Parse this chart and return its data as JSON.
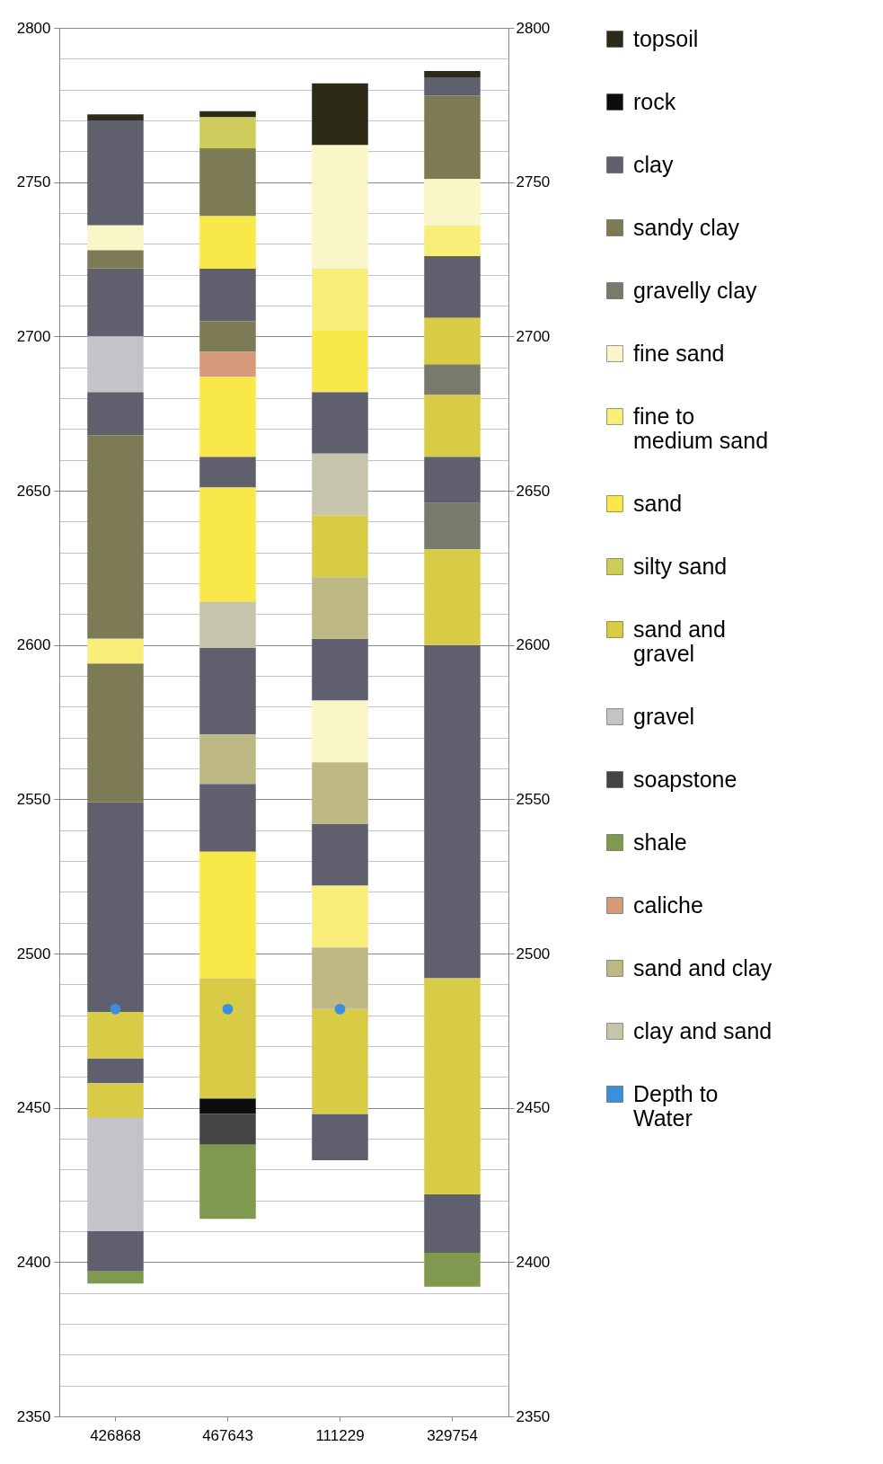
{
  "chart_data": {
    "type": "bar",
    "categories": [
      "426868",
      "467643",
      "111229",
      "329754"
    ],
    "ylim": [
      2350,
      2800
    ],
    "yticks": [
      2350,
      {
        "value": 2360,
        "label": null
      },
      {
        "value": 2370,
        "label": null
      },
      {
        "value": 2380,
        "label": null
      },
      {
        "value": 2390,
        "label": null
      },
      2400,
      {
        "value": 2410,
        "label": null
      },
      {
        "value": 2420,
        "label": null
      },
      {
        "value": 2430,
        "label": null
      },
      {
        "value": 2440,
        "label": null
      },
      2450,
      {
        "value": 2460,
        "label": null
      },
      {
        "value": 2470,
        "label": null
      },
      {
        "value": 2480,
        "label": null
      },
      {
        "value": 2490,
        "label": null
      },
      2500,
      {
        "value": 2510,
        "label": null
      },
      {
        "value": 2520,
        "label": null
      },
      {
        "value": 2530,
        "label": null
      },
      {
        "value": 2540,
        "label": null
      },
      2550,
      {
        "value": 2560,
        "label": null
      },
      {
        "value": 2570,
        "label": null
      },
      {
        "value": 2580,
        "label": null
      },
      {
        "value": 2590,
        "label": null
      },
      2600,
      {
        "value": 2610,
        "label": null
      },
      {
        "value": 2620,
        "label": null
      },
      {
        "value": 2630,
        "label": null
      },
      {
        "value": 2640,
        "label": null
      },
      2650,
      {
        "value": 2660,
        "label": null
      },
      {
        "value": 2670,
        "label": null
      },
      {
        "value": 2680,
        "label": null
      },
      {
        "value": 2690,
        "label": null
      },
      2700,
      {
        "value": 2710,
        "label": null
      },
      {
        "value": 2720,
        "label": null
      },
      {
        "value": 2730,
        "label": null
      },
      {
        "value": 2740,
        "label": null
      },
      2750,
      {
        "value": 2760,
        "label": null
      },
      {
        "value": 2770,
        "label": null
      },
      {
        "value": 2780,
        "label": null
      },
      {
        "value": 2790,
        "label": null
      },
      2800
    ],
    "y2lim": [
      2350,
      2800
    ],
    "y2ticks": [
      2350,
      2400,
      2450,
      2500,
      2550,
      2600,
      2650,
      2700,
      2750,
      2800
    ],
    "grid": "y",
    "legend": "right",
    "series": [
      {
        "name": "topsoil",
        "color": "#2e2a18",
        "x": [
          "426868",
          "467643",
          "111229",
          "329754"
        ],
        "base": [
          2770,
          2771,
          2762,
          2784
        ],
        "values": [
          2,
          2,
          20,
          2
        ]
      },
      {
        "name": "rock",
        "color": "#0d0d0d",
        "x": [
          "467643"
        ],
        "base": [
          2448
        ],
        "values": [
          5
        ]
      },
      {
        "name": "clay",
        "color": "#5f5f6e",
        "x": [
          "426868",
          "426868",
          "426868",
          "426868",
          "426868",
          "426868",
          "467643",
          "467643",
          "467643",
          "467643",
          "111229",
          "111229",
          "111229",
          "111229",
          "329754",
          "329754",
          "329754",
          "329754",
          "329754"
        ],
        "base": [
          2397,
          2458,
          2481,
          2668,
          2700,
          2736,
          2533,
          2571,
          2651,
          2705,
          2433,
          2522,
          2582,
          2662,
          2403,
          2492,
          2646,
          2706,
          2778
        ],
        "values": [
          13,
          8,
          68,
          14,
          22,
          34,
          22,
          28,
          10,
          17,
          15,
          20,
          20,
          20,
          19,
          108,
          15,
          20,
          6
        ]
      },
      {
        "name": "sandy clay",
        "color": "#7c7b55",
        "x": [
          "426868",
          "426868",
          "426868",
          "467643",
          "467643",
          "329754"
        ],
        "base": [
          2549,
          2602,
          2722,
          2695,
          2739,
          2751
        ],
        "values": [
          45,
          66,
          6,
          10,
          22,
          27
        ]
      },
      {
        "name": "gravelly clay",
        "color": "#7a7a6c",
        "x": [
          "329754",
          "329754"
        ],
        "base": [
          2631,
          2681
        ],
        "values": [
          15,
          10
        ]
      },
      {
        "name": "fine sand",
        "color": "#fbf6c8",
        "x": [
          "426868",
          "111229",
          "111229",
          "329754"
        ],
        "base": [
          2728,
          2562,
          2722,
          2736
        ],
        "values": [
          8,
          20,
          40,
          15
        ]
      },
      {
        "name": "fine to medium sand",
        "color": "#f9ee7a",
        "x": [
          "426868",
          "111229",
          "111229",
          "329754"
        ],
        "base": [
          2594,
          2502,
          2702,
          2726
        ],
        "values": [
          8,
          20,
          20,
          10
        ]
      },
      {
        "name": "sand",
        "color": "#f8e84a",
        "x": [
          "467643",
          "467643",
          "467643",
          "467643",
          "111229"
        ],
        "base": [
          2492,
          2614,
          2661,
          2722,
          2682
        ],
        "values": [
          41,
          37,
          26,
          17,
          20
        ]
      },
      {
        "name": "silty sand",
        "color": "#cdcc5c",
        "x": [
          "467643"
        ],
        "base": [
          2761
        ],
        "values": [
          10
        ]
      },
      {
        "name": "sand and gravel",
        "color": "#d8cb45",
        "x": [
          "426868",
          "426868",
          "467643",
          "111229",
          "111229",
          "329754",
          "329754",
          "329754",
          "329754"
        ],
        "base": [
          2447,
          2466,
          2453,
          2448,
          2622,
          2422,
          2600,
          2661,
          2691
        ],
        "values": [
          11,
          15,
          39,
          34,
          20,
          70,
          31,
          20,
          15
        ]
      },
      {
        "name": "gravel",
        "color": "#c4c4c8",
        "x": [
          "426868",
          "426868"
        ],
        "base": [
          2410,
          2682
        ],
        "values": [
          37,
          18
        ]
      },
      {
        "name": "soapstone",
        "color": "#444444",
        "x": [
          "467643"
        ],
        "base": [
          2438
        ],
        "values": [
          10
        ]
      },
      {
        "name": "shale",
        "color": "#7f9a4e",
        "x": [
          "426868",
          "467643",
          "329754"
        ],
        "base": [
          2393,
          2414,
          2392
        ],
        "values": [
          4,
          24,
          11
        ]
      },
      {
        "name": "caliche",
        "color": "#d49a7a",
        "x": [
          "467643"
        ],
        "base": [
          2687
        ],
        "values": [
          8
        ]
      },
      {
        "name": "sand and clay",
        "color": "#bdb884",
        "x": [
          "467643",
          "111229",
          "111229",
          "111229"
        ],
        "base": [
          2555,
          2482,
          2542,
          2602
        ],
        "values": [
          16,
          20,
          20,
          20
        ]
      },
      {
        "name": "clay and sand",
        "color": "#c6c4aa",
        "x": [
          "467643",
          "111229"
        ],
        "base": [
          2599,
          2642
        ],
        "values": [
          15,
          20
        ]
      },
      {
        "name": "Depth to Water",
        "color": "#3b8fdc",
        "type": "scatter",
        "x": [
          "426868",
          "467643",
          "111229"
        ],
        "values": [
          2482,
          2482,
          2482
        ]
      }
    ]
  }
}
